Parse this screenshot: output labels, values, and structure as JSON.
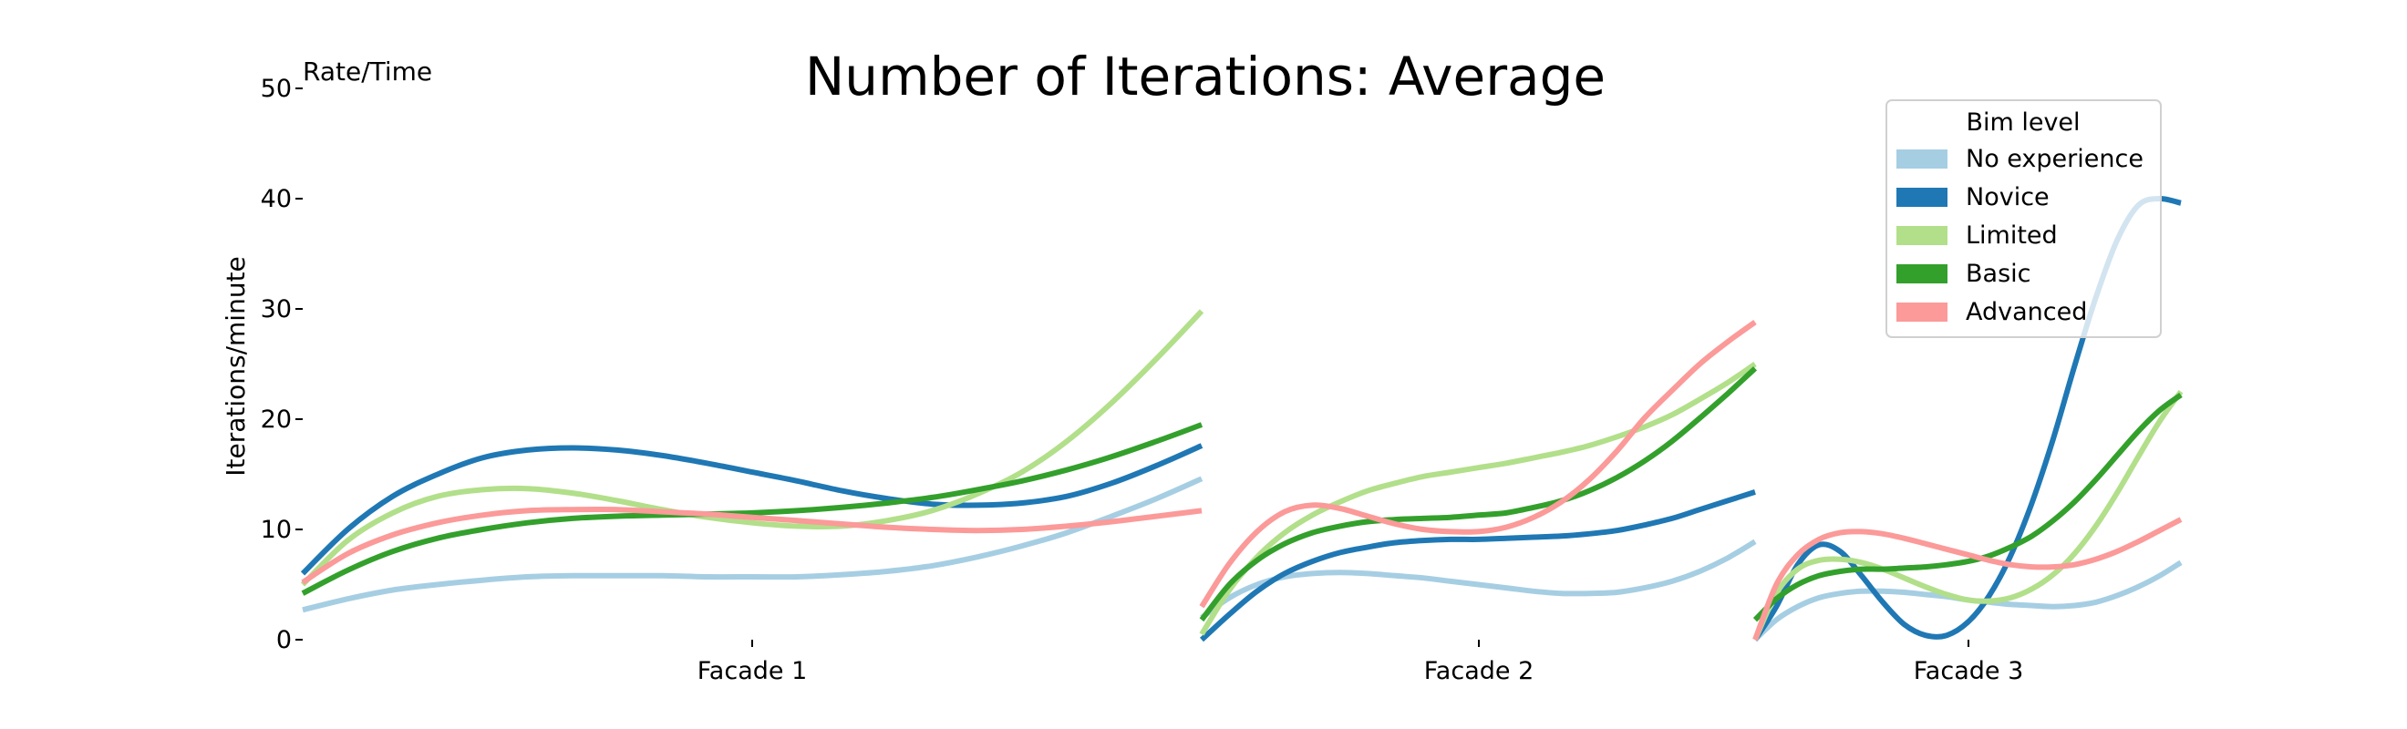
{
  "chart_data": {
    "type": "line",
    "title": "Number of Iterations: Average",
    "corner_label": "Rate/Time",
    "ylabel": "Iterations/minute",
    "ylim": [
      0,
      50
    ],
    "yticks": [
      "0",
      "10",
      "20",
      "30",
      "40",
      "50"
    ],
    "categories": [
      "Facade 1",
      "Facade 2",
      "Facade 3"
    ],
    "legend": {
      "title": "Bim level",
      "placement": "top-right"
    },
    "facades": [
      {
        "name": "Facade 1",
        "x": [
          0,
          0.05,
          0.1,
          0.15,
          0.2,
          0.25,
          0.3,
          0.35,
          0.4,
          0.45,
          0.5,
          0.55,
          0.6,
          0.65,
          0.7,
          0.75,
          0.8,
          0.85,
          0.9,
          0.95,
          1
        ],
        "series": [
          {
            "name": "No experience",
            "values": [
              2.7,
              3.7,
              4.5,
              5.0,
              5.4,
              5.7,
              5.8,
              5.8,
              5.8,
              5.7,
              5.7,
              5.7,
              5.9,
              6.2,
              6.7,
              7.5,
              8.5,
              9.7,
              11.2,
              12.8,
              14.6
            ]
          },
          {
            "name": "Novice",
            "values": [
              6.0,
              10.0,
              13.0,
              15.0,
              16.5,
              17.2,
              17.4,
              17.2,
              16.7,
              16.0,
              15.2,
              14.4,
              13.5,
              12.8,
              12.3,
              12.2,
              12.4,
              13.0,
              14.2,
              15.8,
              17.6
            ]
          },
          {
            "name": "Limited",
            "values": [
              5.0,
              9.0,
              11.5,
              13.0,
              13.6,
              13.7,
              13.3,
              12.6,
              11.8,
              11.1,
              10.6,
              10.3,
              10.3,
              10.8,
              11.7,
              13.2,
              15.2,
              18.0,
              21.5,
              25.5,
              29.8
            ]
          },
          {
            "name": "Basic",
            "values": [
              4.2,
              6.3,
              8.0,
              9.2,
              10.0,
              10.6,
              11.0,
              11.2,
              11.3,
              11.4,
              11.5,
              11.7,
              12.0,
              12.4,
              12.9,
              13.6,
              14.4,
              15.4,
              16.6,
              18.0,
              19.5
            ]
          },
          {
            "name": "Advanced",
            "values": [
              5.2,
              7.8,
              9.5,
              10.6,
              11.3,
              11.7,
              11.8,
              11.8,
              11.6,
              11.4,
              11.1,
              10.8,
              10.5,
              10.2,
              10.0,
              9.9,
              10.0,
              10.3,
              10.7,
              11.2,
              11.7
            ]
          }
        ]
      },
      {
        "name": "Facade 2",
        "x": [
          0,
          0.05,
          0.1,
          0.15,
          0.2,
          0.25,
          0.3,
          0.35,
          0.4,
          0.45,
          0.5,
          0.55,
          0.6,
          0.65,
          0.7,
          0.75,
          0.8,
          0.85,
          0.9,
          0.95,
          1
        ],
        "series": [
          {
            "name": "No experience",
            "values": [
              2.0,
              3.8,
              5.0,
              5.7,
              6.0,
              6.1,
              6.0,
              5.8,
              5.6,
              5.3,
              5.0,
              4.7,
              4.4,
              4.2,
              4.2,
              4.3,
              4.7,
              5.3,
              6.2,
              7.4,
              8.9
            ]
          },
          {
            "name": "Novice",
            "values": [
              0,
              2.3,
              4.4,
              6.0,
              7.1,
              7.9,
              8.4,
              8.8,
              9.0,
              9.1,
              9.1,
              9.2,
              9.3,
              9.4,
              9.6,
              9.9,
              10.4,
              11.0,
              11.8,
              12.6,
              13.4
            ]
          },
          {
            "name": "Limited",
            "values": [
              0.5,
              4.5,
              7.5,
              9.7,
              11.3,
              12.5,
              13.5,
              14.2,
              14.8,
              15.2,
              15.6,
              16.0,
              16.5,
              17.0,
              17.6,
              18.4,
              19.3,
              20.4,
              21.8,
              23.3,
              25.0
            ]
          },
          {
            "name": "Basic",
            "values": [
              1.8,
              5.0,
              7.2,
              8.7,
              9.7,
              10.3,
              10.7,
              10.9,
              11.0,
              11.1,
              11.3,
              11.5,
              12.0,
              12.6,
              13.5,
              14.7,
              16.2,
              18.0,
              20.1,
              22.3,
              24.6
            ]
          },
          {
            "name": "Advanced",
            "values": [
              3.0,
              6.9,
              9.8,
              11.6,
              12.2,
              11.9,
              11.2,
              10.5,
              10.0,
              9.8,
              9.8,
              10.2,
              11.1,
              12.5,
              14.5,
              17.1,
              20.1,
              22.6,
              25.0,
              27.0,
              28.8
            ]
          }
        ]
      },
      {
        "name": "Facade 3",
        "x": [
          0,
          0.05,
          0.1,
          0.15,
          0.2,
          0.25,
          0.3,
          0.35,
          0.4,
          0.45,
          0.5,
          0.55,
          0.6,
          0.65,
          0.7,
          0.75,
          0.8,
          0.85,
          0.9,
          0.95,
          1
        ],
        "series": [
          {
            "name": "No experience",
            "values": [
              0,
              1.8,
              3.0,
              3.8,
              4.2,
              4.4,
              4.4,
              4.3,
              4.1,
              3.9,
              3.6,
              3.4,
              3.2,
              3.1,
              3.0,
              3.1,
              3.4,
              4.0,
              4.8,
              5.8,
              7.0
            ]
          },
          {
            "name": "Novice",
            "values": [
              0,
              3.0,
              6.8,
              8.6,
              8.0,
              5.8,
              3.4,
              1.4,
              0.4,
              0.4,
              1.6,
              4.0,
              7.6,
              12.4,
              18.2,
              24.8,
              31.0,
              36.2,
              39.4,
              40.0,
              39.6
            ]
          },
          {
            "name": "Limited",
            "values": [
              0,
              4.2,
              6.4,
              7.2,
              7.3,
              7.0,
              6.4,
              5.6,
              4.8,
              4.1,
              3.6,
              3.5,
              3.8,
              4.6,
              5.9,
              7.8,
              10.3,
              13.3,
              16.6,
              19.8,
              22.5
            ]
          },
          {
            "name": "Basic",
            "values": [
              1.8,
              3.7,
              5.0,
              5.8,
              6.2,
              6.4,
              6.4,
              6.5,
              6.6,
              6.8,
              7.1,
              7.6,
              8.4,
              9.4,
              10.8,
              12.5,
              14.5,
              16.7,
              18.9,
              20.8,
              22.2
            ]
          },
          {
            "name": "Advanced",
            "values": [
              0,
              5.0,
              7.7,
              9.1,
              9.7,
              9.8,
              9.6,
              9.2,
              8.7,
              8.2,
              7.7,
              7.2,
              6.8,
              6.6,
              6.6,
              6.8,
              7.3,
              8.0,
              8.9,
              9.9,
              10.9
            ]
          }
        ]
      }
    ],
    "colors": {
      "No experience": "#a6cee3",
      "Novice": "#1f78b4",
      "Limited": "#b2df8a",
      "Basic": "#33a02c",
      "Advanced": "#fb9a99"
    },
    "grid": false
  }
}
